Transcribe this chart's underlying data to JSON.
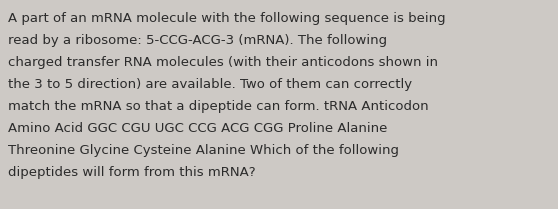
{
  "background_color": "#cdc9c5",
  "text_color": "#2b2b2b",
  "font_size": 9.5,
  "fig_width": 5.58,
  "fig_height": 2.09,
  "dpi": 100,
  "lines": [
    "A part of an mRNA molecule with the following sequence is being",
    "read by a ribosome: 5-CCG-ACG-3 (mRNA). The following",
    "charged transfer RNA molecules (with their anticodons shown in",
    "the 3 to 5 direction) are available. Two of them can correctly",
    "match the mRNA so that a dipeptide can form. tRNA Anticodon",
    "Amino Acid GGC CGU UGC CCG ACG CGG Proline Alanine",
    "Threonine Glycine Cysteine Alanine Which of the following",
    "dipeptides will form from this mRNA?"
  ]
}
